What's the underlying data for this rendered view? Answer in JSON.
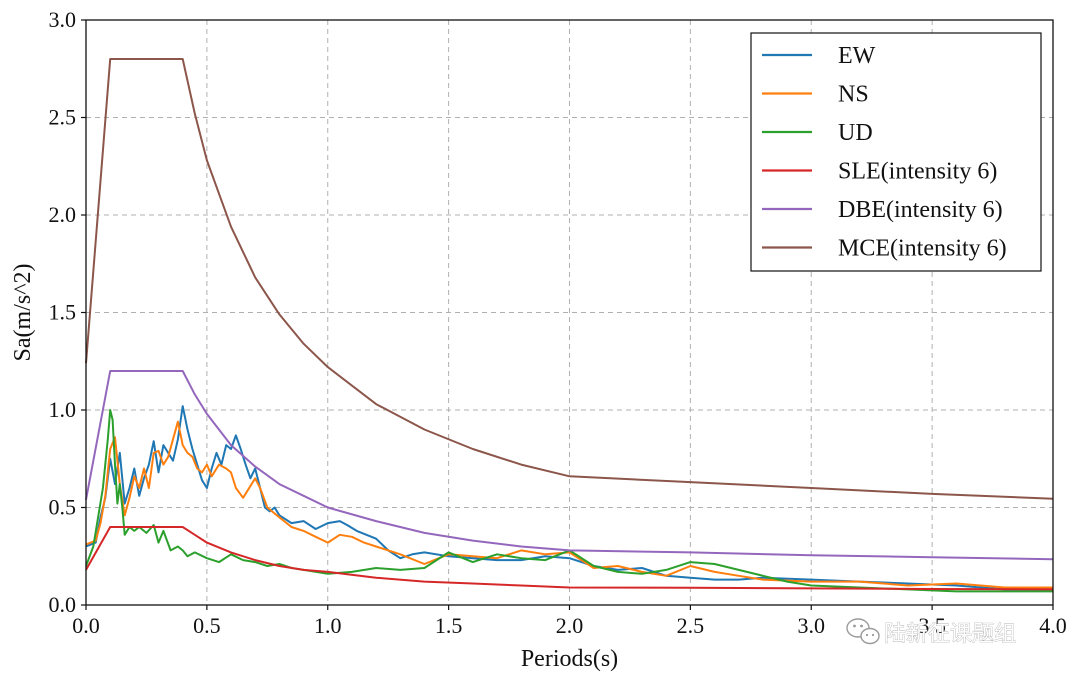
{
  "chart_data": {
    "type": "line",
    "xlabel": "Periods(s)",
    "ylabel": "Sa(m/s^2)",
    "xlim": [
      0.0,
      4.0
    ],
    "ylim": [
      0.0,
      3.0
    ],
    "x_ticks": [
      "0.0",
      "0.5",
      "1.0",
      "1.5",
      "2.0",
      "2.5",
      "3.0",
      "3.5",
      "4.0"
    ],
    "y_ticks": [
      "0.0",
      "0.5",
      "1.0",
      "1.5",
      "2.0",
      "2.5",
      "3.0"
    ],
    "grid": true,
    "legend_position": "top-right",
    "series": [
      {
        "name": "EW",
        "color": "#1f77b4",
        "x": [
          0.0,
          0.04,
          0.06,
          0.08,
          0.1,
          0.12,
          0.14,
          0.16,
          0.18,
          0.2,
          0.22,
          0.24,
          0.26,
          0.28,
          0.3,
          0.32,
          0.34,
          0.36,
          0.38,
          0.4,
          0.42,
          0.44,
          0.46,
          0.48,
          0.5,
          0.52,
          0.54,
          0.56,
          0.58,
          0.6,
          0.62,
          0.64,
          0.66,
          0.68,
          0.7,
          0.72,
          0.74,
          0.76,
          0.78,
          0.8,
          0.85,
          0.9,
          0.95,
          1.0,
          1.05,
          1.08,
          1.12,
          1.2,
          1.25,
          1.3,
          1.35,
          1.4,
          1.5,
          1.6,
          1.7,
          1.8,
          1.9,
          2.0,
          2.1,
          2.2,
          2.3,
          2.4,
          2.5,
          2.6,
          2.7,
          2.8,
          3.0,
          3.2,
          3.4,
          3.6,
          3.8,
          4.0
        ],
        "values": [
          0.3,
          0.32,
          0.45,
          0.55,
          0.75,
          0.62,
          0.78,
          0.52,
          0.6,
          0.7,
          0.56,
          0.65,
          0.72,
          0.84,
          0.68,
          0.82,
          0.78,
          0.74,
          0.85,
          1.02,
          0.9,
          0.8,
          0.72,
          0.64,
          0.6,
          0.7,
          0.78,
          0.72,
          0.82,
          0.8,
          0.87,
          0.8,
          0.72,
          0.65,
          0.7,
          0.6,
          0.5,
          0.48,
          0.5,
          0.46,
          0.42,
          0.43,
          0.39,
          0.42,
          0.43,
          0.41,
          0.38,
          0.34,
          0.28,
          0.24,
          0.26,
          0.27,
          0.25,
          0.24,
          0.23,
          0.23,
          0.25,
          0.24,
          0.2,
          0.18,
          0.19,
          0.15,
          0.14,
          0.13,
          0.13,
          0.14,
          0.13,
          0.12,
          0.11,
          0.1,
          0.08,
          0.08
        ]
      },
      {
        "name": "NS",
        "color": "#ff7f0e",
        "x": [
          0.0,
          0.04,
          0.06,
          0.08,
          0.1,
          0.12,
          0.14,
          0.16,
          0.18,
          0.2,
          0.22,
          0.24,
          0.26,
          0.28,
          0.3,
          0.32,
          0.34,
          0.36,
          0.38,
          0.4,
          0.42,
          0.44,
          0.46,
          0.48,
          0.5,
          0.52,
          0.55,
          0.58,
          0.6,
          0.62,
          0.65,
          0.7,
          0.72,
          0.75,
          0.8,
          0.85,
          0.9,
          0.95,
          1.0,
          1.05,
          1.1,
          1.15,
          1.2,
          1.3,
          1.4,
          1.5,
          1.6,
          1.7,
          1.8,
          1.9,
          2.0,
          2.1,
          2.2,
          2.3,
          2.4,
          2.5,
          2.6,
          2.7,
          2.8,
          3.0,
          3.2,
          3.4,
          3.6,
          3.8,
          4.0
        ],
        "values": [
          0.31,
          0.33,
          0.42,
          0.56,
          0.8,
          0.86,
          0.62,
          0.46,
          0.55,
          0.66,
          0.6,
          0.7,
          0.6,
          0.78,
          0.79,
          0.72,
          0.76,
          0.85,
          0.94,
          0.82,
          0.78,
          0.76,
          0.7,
          0.68,
          0.72,
          0.66,
          0.72,
          0.7,
          0.68,
          0.6,
          0.55,
          0.65,
          0.6,
          0.5,
          0.45,
          0.4,
          0.38,
          0.35,
          0.32,
          0.36,
          0.35,
          0.32,
          0.3,
          0.26,
          0.21,
          0.26,
          0.25,
          0.24,
          0.28,
          0.26,
          0.27,
          0.19,
          0.2,
          0.17,
          0.15,
          0.2,
          0.17,
          0.15,
          0.13,
          0.12,
          0.12,
          0.1,
          0.11,
          0.09,
          0.09
        ]
      },
      {
        "name": "UD",
        "color": "#2ca02c",
        "x": [
          0.0,
          0.03,
          0.05,
          0.07,
          0.09,
          0.1,
          0.11,
          0.12,
          0.13,
          0.14,
          0.15,
          0.16,
          0.18,
          0.2,
          0.22,
          0.25,
          0.28,
          0.3,
          0.32,
          0.35,
          0.38,
          0.4,
          0.42,
          0.45,
          0.5,
          0.55,
          0.6,
          0.65,
          0.7,
          0.75,
          0.8,
          0.85,
          0.9,
          1.0,
          1.1,
          1.2,
          1.3,
          1.4,
          1.5,
          1.6,
          1.7,
          1.8,
          1.9,
          2.0,
          2.1,
          2.2,
          2.3,
          2.4,
          2.5,
          2.6,
          2.7,
          2.8,
          2.9,
          3.0,
          3.2,
          3.4,
          3.6,
          3.8,
          4.0
        ],
        "values": [
          0.2,
          0.3,
          0.45,
          0.6,
          0.85,
          1.0,
          0.95,
          0.72,
          0.52,
          0.62,
          0.5,
          0.36,
          0.4,
          0.38,
          0.4,
          0.37,
          0.41,
          0.32,
          0.38,
          0.28,
          0.3,
          0.28,
          0.25,
          0.27,
          0.24,
          0.22,
          0.26,
          0.23,
          0.22,
          0.2,
          0.21,
          0.19,
          0.18,
          0.16,
          0.17,
          0.19,
          0.18,
          0.19,
          0.27,
          0.22,
          0.26,
          0.24,
          0.23,
          0.28,
          0.2,
          0.17,
          0.16,
          0.18,
          0.22,
          0.21,
          0.18,
          0.15,
          0.12,
          0.1,
          0.09,
          0.08,
          0.07,
          0.07,
          0.07
        ]
      },
      {
        "name": "SLE(intensity 6)",
        "color": "#d62728",
        "x": [
          0.0,
          0.1,
          0.4,
          0.45,
          0.5,
          0.6,
          0.7,
          0.8,
          0.9,
          1.0,
          1.2,
          1.4,
          1.6,
          1.8,
          2.0,
          2.5,
          3.0,
          3.5,
          4.0
        ],
        "values": [
          0.18,
          0.4,
          0.4,
          0.36,
          0.32,
          0.27,
          0.23,
          0.2,
          0.18,
          0.17,
          0.14,
          0.12,
          0.11,
          0.1,
          0.09,
          0.088,
          0.085,
          0.082,
          0.08
        ]
      },
      {
        "name": "DBE(intensity 6)",
        "color": "#9467bd",
        "x": [
          0.0,
          0.1,
          0.4,
          0.45,
          0.5,
          0.6,
          0.7,
          0.8,
          0.9,
          1.0,
          1.2,
          1.4,
          1.6,
          1.8,
          2.0,
          2.5,
          3.0,
          3.5,
          4.0
        ],
        "values": [
          0.54,
          1.2,
          1.2,
          1.08,
          0.98,
          0.82,
          0.71,
          0.62,
          0.56,
          0.5,
          0.43,
          0.37,
          0.33,
          0.3,
          0.28,
          0.27,
          0.255,
          0.245,
          0.235
        ]
      },
      {
        "name": "MCE(intensity 6)",
        "color": "#8c564b",
        "x": [
          0.0,
          0.1,
          0.4,
          0.45,
          0.5,
          0.6,
          0.7,
          0.8,
          0.9,
          1.0,
          1.2,
          1.4,
          1.6,
          1.8,
          2.0,
          2.5,
          3.0,
          3.5,
          4.0
        ],
        "values": [
          1.24,
          2.8,
          2.8,
          2.52,
          2.28,
          1.94,
          1.68,
          1.49,
          1.34,
          1.22,
          1.03,
          0.9,
          0.8,
          0.72,
          0.66,
          0.63,
          0.6,
          0.57,
          0.545
        ]
      }
    ]
  },
  "watermark": {
    "text": "陆新征课题组",
    "icon": "wechat-icon"
  }
}
